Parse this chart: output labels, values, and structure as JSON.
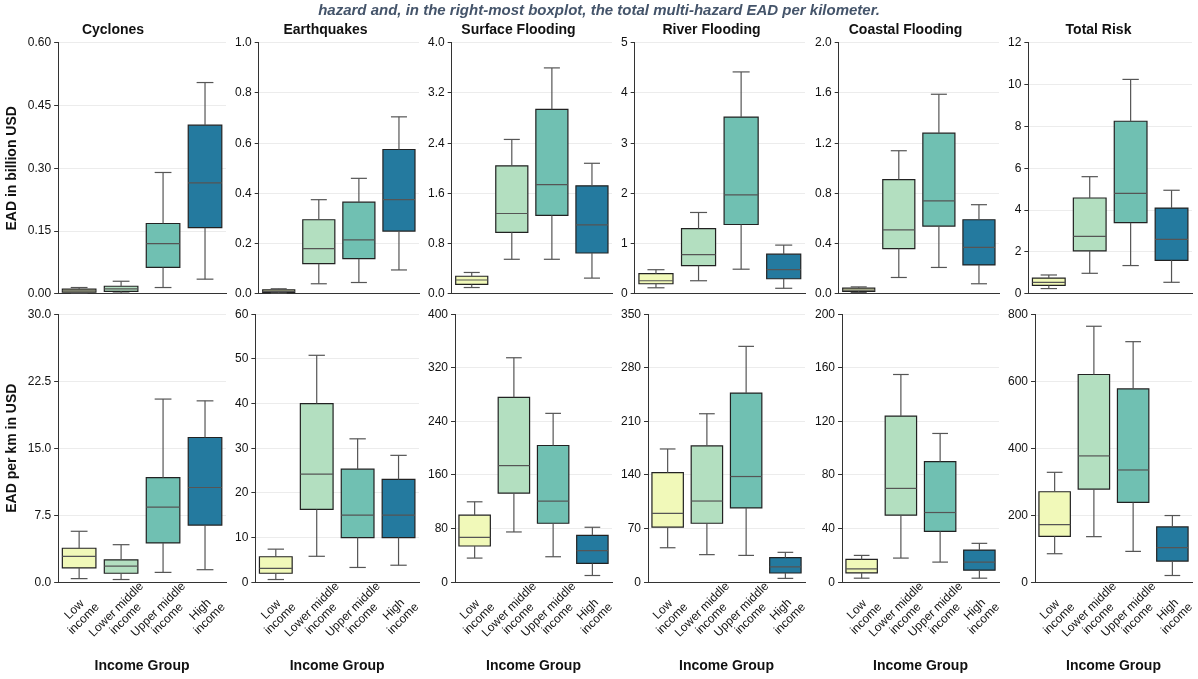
{
  "chart_data": [
    {
      "type": "other",
      "title": "hazard and, in the right-most boxplot, the total multi-hazard EAD per kilometer."
    },
    {
      "type": "box",
      "title": "Cyclones",
      "ylabel": "EAD in billion USD",
      "categories": [
        null,
        null,
        null,
        null
      ],
      "colors": [
        "#f1f9b9",
        "#b3dfc0",
        "#70c0b2",
        "#247a9f"
      ],
      "ylim": [
        0,
        0.6
      ],
      "yticks": [
        {
          "value": 0,
          "label": "0.00"
        },
        0.15,
        {
          "value": 0.3,
          "label": "0.30"
        },
        0.45,
        {
          "value": 0.6,
          "label": "0.60"
        }
      ],
      "grid": "y",
      "tick_labels": "y",
      "boxes": [
        {
          "low": 0.002,
          "q1": 0.004,
          "median": 0.007,
          "q3": 0.011,
          "high": 0.015
        },
        {
          "low": 0.002,
          "q1": 0.006,
          "median": 0.012,
          "q3": 0.018,
          "high": 0.03
        },
        {
          "low": 0.015,
          "q1": 0.063,
          "median": 0.12,
          "q3": 0.168,
          "high": 0.29
        },
        {
          "low": 0.035,
          "q1": 0.158,
          "median": 0.265,
          "q3": 0.403,
          "high": 0.505
        }
      ]
    },
    {
      "type": "box",
      "title": "Earthquakes",
      "categories": [
        null,
        null,
        null,
        null
      ],
      "colors": [
        "#f1f9b9",
        "#b3dfc0",
        "#70c0b2",
        "#247a9f"
      ],
      "ylim": [
        0,
        1
      ],
      "yticks": [
        {
          "value": 0,
          "label": "0.0"
        },
        0.2,
        0.4,
        0.6,
        0.8,
        {
          "value": 1,
          "label": "1.0"
        }
      ],
      "grid": "y",
      "tick_labels": "y",
      "boxes": [
        {
          "low": 0.003,
          "q1": 0.006,
          "median": 0.01,
          "q3": 0.016,
          "high": 0.02
        },
        {
          "low": 0.04,
          "q1": 0.12,
          "median": 0.18,
          "q3": 0.295,
          "high": 0.375
        },
        {
          "low": 0.045,
          "q1": 0.14,
          "median": 0.215,
          "q3": 0.365,
          "high": 0.46
        },
        {
          "low": 0.095,
          "q1": 0.25,
          "median": 0.375,
          "q3": 0.575,
          "high": 0.705
        }
      ]
    },
    {
      "type": "box",
      "title": "Surface Flooding",
      "categories": [
        null,
        null,
        null,
        null
      ],
      "colors": [
        "#f1f9b9",
        "#b3dfc0",
        "#70c0b2",
        "#247a9f"
      ],
      "ylim": [
        0,
        4
      ],
      "yticks": [
        {
          "value": 0,
          "label": "0.0"
        },
        0.8,
        1.6,
        2.4,
        3.2,
        {
          "value": 4,
          "label": "4.0"
        }
      ],
      "grid": "y",
      "tick_labels": "y",
      "boxes": [
        {
          "low": 0.1,
          "q1": 0.15,
          "median": 0.22,
          "q3": 0.28,
          "high": 0.34
        },
        {
          "low": 0.55,
          "q1": 0.98,
          "median": 1.28,
          "q3": 2.04,
          "high": 2.46
        },
        {
          "low": 0.55,
          "q1": 1.25,
          "median": 1.74,
          "q3": 2.94,
          "high": 3.6
        },
        {
          "low": 0.25,
          "q1": 0.65,
          "median": 1.1,
          "q3": 1.72,
          "high": 2.08
        }
      ]
    },
    {
      "type": "box",
      "title": "River Flooding",
      "categories": [
        null,
        null,
        null,
        null
      ],
      "colors": [
        "#f1f9b9",
        "#b3dfc0",
        "#70c0b2",
        "#247a9f"
      ],
      "ylim": [
        0,
        5
      ],
      "yticks": [
        0,
        1,
        2,
        3,
        4,
        5
      ],
      "grid": "y",
      "tick_labels": "y",
      "boxes": [
        {
          "low": 0.12,
          "q1": 0.2,
          "median": 0.26,
          "q3": 0.4,
          "high": 0.48
        },
        {
          "low": 0.26,
          "q1": 0.56,
          "median": 0.78,
          "q3": 1.3,
          "high": 1.62
        },
        {
          "low": 0.49,
          "q1": 1.38,
          "median": 1.97,
          "q3": 3.52,
          "high": 4.42
        },
        {
          "low": 0.11,
          "q1": 0.3,
          "median": 0.48,
          "q3": 0.79,
          "high": 0.97
        }
      ]
    },
    {
      "type": "box",
      "title": "Coastal Flooding",
      "categories": [
        null,
        null,
        null,
        null
      ],
      "colors": [
        "#f1f9b9",
        "#b3dfc0",
        "#70c0b2",
        "#247a9f"
      ],
      "ylim": [
        0,
        2
      ],
      "yticks": [
        {
          "value": 0,
          "label": "0.0"
        },
        0.4,
        0.8,
        1.2,
        1.6,
        {
          "value": 2,
          "label": "2.0"
        }
      ],
      "grid": "y",
      "tick_labels": "y",
      "boxes": [
        {
          "low": 0.01,
          "q1": 0.02,
          "median": 0.03,
          "q3": 0.045,
          "high": 0.055
        },
        {
          "low": 0.13,
          "q1": 0.36,
          "median": 0.51,
          "q3": 0.91,
          "high": 1.14
        },
        {
          "low": 0.21,
          "q1": 0.54,
          "median": 0.74,
          "q3": 1.28,
          "high": 1.59
        },
        {
          "low": 0.08,
          "q1": 0.23,
          "median": 0.37,
          "q3": 0.59,
          "high": 0.71
        }
      ]
    },
    {
      "type": "box",
      "title": "Total Risk",
      "categories": [
        null,
        null,
        null,
        null
      ],
      "colors": [
        "#f1f9b9",
        "#b3dfc0",
        "#70c0b2",
        "#247a9f"
      ],
      "ylim": [
        0,
        12
      ],
      "yticks": [
        0,
        2,
        4,
        6,
        8,
        10,
        12
      ],
      "grid": "y",
      "tick_labels": "y",
      "boxes": [
        {
          "low": 0.25,
          "q1": 0.4,
          "median": 0.55,
          "q3": 0.75,
          "high": 0.9
        },
        {
          "low": 0.98,
          "q1": 2.05,
          "median": 2.75,
          "q3": 4.58,
          "high": 5.6
        },
        {
          "low": 1.35,
          "q1": 3.4,
          "median": 4.8,
          "q3": 8.25,
          "high": 10.25
        },
        {
          "low": 0.55,
          "q1": 1.6,
          "median": 2.6,
          "q3": 4.1,
          "high": 4.95
        }
      ]
    },
    {
      "type": "box",
      "ylabel": "EAD per km in USD",
      "xlabel": "Income Group",
      "categories": [
        "Low income",
        "Lower middle income",
        "Upper middle income",
        "High income"
      ],
      "colors": [
        "#f1f9b9",
        "#b3dfc0",
        "#70c0b2",
        "#247a9f"
      ],
      "ylim": [
        0,
        30
      ],
      "yticks": [
        {
          "value": 0,
          "label": "0.0"
        },
        7.5,
        {
          "value": 15,
          "label": "15.0"
        },
        22.5,
        {
          "value": 30,
          "label": "30.0"
        }
      ],
      "grid": "y",
      "boxes": [
        {
          "low": 0.4,
          "q1": 1.6,
          "median": 2.9,
          "q3": 3.8,
          "high": 5.7
        },
        {
          "low": 0.3,
          "q1": 1.0,
          "median": 1.8,
          "q3": 2.5,
          "high": 4.2
        },
        {
          "low": 1.1,
          "q1": 4.4,
          "median": 8.4,
          "q3": 11.7,
          "high": 20.5
        },
        {
          "low": 1.4,
          "q1": 6.4,
          "median": 10.6,
          "q3": 16.2,
          "high": 20.3
        }
      ]
    },
    {
      "type": "box",
      "xlabel": "Income Group",
      "categories": [
        "Low income",
        "Lower middle income",
        "Upper middle income",
        "High income"
      ],
      "colors": [
        "#f1f9b9",
        "#b3dfc0",
        "#70c0b2",
        "#247a9f"
      ],
      "ylim": [
        0,
        60
      ],
      "yticks": [
        0,
        10,
        20,
        30,
        40,
        50,
        60
      ],
      "grid": "y",
      "boxes": [
        {
          "low": 0.6,
          "q1": 2,
          "median": 3.1,
          "q3": 5.7,
          "high": 7.4
        },
        {
          "low": 5.8,
          "q1": 16.3,
          "median": 24.2,
          "q3": 40,
          "high": 50.8
        },
        {
          "low": 3.3,
          "q1": 10,
          "median": 15,
          "q3": 25.3,
          "high": 32.1
        },
        {
          "low": 3.8,
          "q1": 10,
          "median": 15,
          "q3": 23,
          "high": 28.4
        }
      ]
    },
    {
      "type": "box",
      "xlabel": "Income Group",
      "categories": [
        "Low income",
        "Lower middle income",
        "Upper middle income",
        "High income"
      ],
      "colors": [
        "#f1f9b9",
        "#b3dfc0",
        "#70c0b2",
        "#247a9f"
      ],
      "ylim": [
        0,
        400
      ],
      "yticks": [
        0,
        80,
        160,
        240,
        320,
        400
      ],
      "grid": "y",
      "boxes": [
        {
          "low": 36,
          "q1": 54,
          "median": 67,
          "q3": 100,
          "high": 120
        },
        {
          "low": 75,
          "q1": 133,
          "median": 174,
          "q3": 276,
          "high": 335
        },
        {
          "low": 38,
          "q1": 88,
          "median": 121,
          "q3": 204,
          "high": 252
        },
        {
          "low": 10,
          "q1": 28,
          "median": 47,
          "q3": 70,
          "high": 82
        }
      ]
    },
    {
      "type": "box",
      "xlabel": "Income Group",
      "categories": [
        "Low income",
        "Lower middle income",
        "Upper middle income",
        "High income"
      ],
      "colors": [
        "#f1f9b9",
        "#b3dfc0",
        "#70c0b2",
        "#247a9f"
      ],
      "ylim": [
        0,
        350
      ],
      "yticks": [
        0,
        70,
        140,
        210,
        280,
        350
      ],
      "grid": "y",
      "boxes": [
        {
          "low": 45,
          "q1": 72,
          "median": 90,
          "q3": 143,
          "high": 174
        },
        {
          "low": 36,
          "q1": 77,
          "median": 106,
          "q3": 178,
          "high": 220
        },
        {
          "low": 35,
          "q1": 97,
          "median": 138,
          "q3": 247,
          "high": 308
        },
        {
          "low": 5,
          "q1": 12,
          "median": 20,
          "q3": 32,
          "high": 39
        }
      ]
    },
    {
      "type": "box",
      "xlabel": "Income Group",
      "categories": [
        "Low income",
        "Lower middle income",
        "Upper middle income",
        "High income"
      ],
      "colors": [
        "#f1f9b9",
        "#b3dfc0",
        "#70c0b2",
        "#247a9f"
      ],
      "ylim": [
        0,
        200
      ],
      "yticks": [
        0,
        40,
        80,
        120,
        160,
        200
      ],
      "grid": "y",
      "boxes": [
        {
          "low": 3,
          "q1": 7,
          "median": 10,
          "q3": 17,
          "high": 20
        },
        {
          "low": 18,
          "q1": 50,
          "median": 70,
          "q3": 124,
          "high": 155
        },
        {
          "low": 15,
          "q1": 38,
          "median": 52,
          "q3": 90,
          "high": 111
        },
        {
          "low": 3,
          "q1": 9,
          "median": 15,
          "q3": 24,
          "high": 29
        }
      ]
    },
    {
      "type": "box",
      "xlabel": "Income Group",
      "categories": [
        "Low income",
        "Lower middle income",
        "Upper middle income",
        "High income"
      ],
      "colors": [
        "#f1f9b9",
        "#b3dfc0",
        "#70c0b2",
        "#247a9f"
      ],
      "ylim": [
        0,
        800
      ],
      "yticks": [
        0,
        200,
        400,
        600,
        800
      ],
      "grid": "y",
      "boxes": [
        {
          "low": 85,
          "q1": 137,
          "median": 172,
          "q3": 270,
          "high": 328
        },
        {
          "low": 136,
          "q1": 278,
          "median": 377,
          "q3": 620,
          "high": 764
        },
        {
          "low": 92,
          "q1": 238,
          "median": 335,
          "q3": 577,
          "high": 718
        },
        {
          "low": 20,
          "q1": 63,
          "median": 103,
          "q3": 165,
          "high": 199
        }
      ]
    }
  ]
}
